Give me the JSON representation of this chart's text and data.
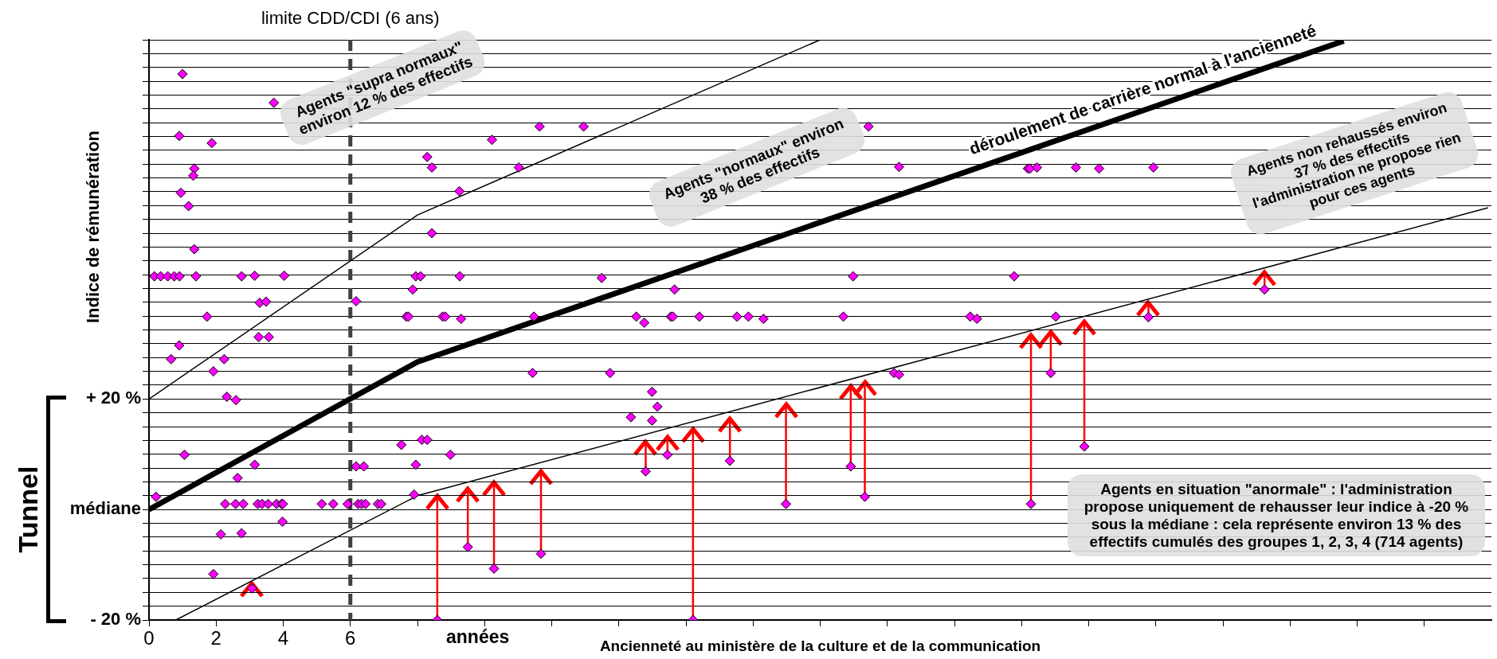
{
  "chart_data": {
    "type": "scatter",
    "xlabel": "Ancienneté au ministère de la culture et de la communication",
    "ylabel": "Indice de rémunération",
    "xlim": [
      0,
      40
    ],
    "ylim": [
      -20,
      85
    ],
    "xticks": [
      0,
      2,
      4,
      6,
      {
        "value": 8,
        "label": null
      },
      {
        "value": 10,
        "label": null
      },
      {
        "value": 12,
        "label": null
      },
      {
        "value": 14,
        "label": null
      },
      {
        "value": 16,
        "label": null
      },
      {
        "value": 18,
        "label": null
      },
      {
        "value": 20,
        "label": null
      },
      {
        "value": 22,
        "label": null
      },
      {
        "value": 24,
        "label": null
      },
      {
        "value": 26,
        "label": null
      },
      {
        "value": 28,
        "label": null
      },
      {
        "value": 30,
        "label": null
      },
      {
        "value": 32,
        "label": null
      },
      {
        "value": 34,
        "label": null
      },
      {
        "value": 36,
        "label": null
      },
      {
        "value": 38,
        "label": null
      }
    ],
    "yticks": [
      {
        "value": -20,
        "label": "- 20 %"
      },
      {
        "value": -17.5,
        "label": null
      },
      {
        "value": -15,
        "label": null
      },
      {
        "value": -12.5,
        "label": null
      },
      {
        "value": -10,
        "label": null
      },
      {
        "value": -7.5,
        "label": null
      },
      {
        "value": -5,
        "label": null
      },
      {
        "value": -2.5,
        "label": null
      },
      {
        "value": 0,
        "label": "médiane"
      },
      {
        "value": 2.5,
        "label": null
      },
      {
        "value": 5,
        "label": null
      },
      {
        "value": 7.5,
        "label": null
      },
      {
        "value": 10,
        "label": null
      },
      {
        "value": 12.5,
        "label": null
      },
      {
        "value": 15,
        "label": null
      },
      {
        "value": 17.5,
        "label": null
      },
      {
        "value": 20,
        "label": "+ 20 %"
      },
      {
        "value": 22.5,
        "label": null
      },
      {
        "value": 25,
        "label": null
      },
      {
        "value": 27.5,
        "label": null
      },
      {
        "value": 30,
        "label": null
      },
      {
        "value": 32.5,
        "label": null
      },
      {
        "value": 35,
        "label": null
      },
      {
        "value": 37.5,
        "label": null
      },
      {
        "value": 40,
        "label": null
      },
      {
        "value": 42.5,
        "label": null
      },
      {
        "value": 45,
        "label": null
      },
      {
        "value": 47.5,
        "label": null
      },
      {
        "value": 50,
        "label": null
      },
      {
        "value": 52.5,
        "label": null
      },
      {
        "value": 55,
        "label": null
      },
      {
        "value": 57.5,
        "label": null
      },
      {
        "value": 60,
        "label": null
      },
      {
        "value": 62.5,
        "label": null
      },
      {
        "value": 65,
        "label": null
      },
      {
        "value": 67.5,
        "label": null
      },
      {
        "value": 70,
        "label": null
      },
      {
        "value": 72.5,
        "label": null
      },
      {
        "value": 75,
        "label": null
      },
      {
        "value": 77.5,
        "label": null
      },
      {
        "value": 80,
        "label": null
      },
      {
        "value": 82.5,
        "label": null
      },
      {
        "value": 85,
        "label": null
      }
    ],
    "grid": "y",
    "marker": "diamond",
    "ref_lines": [
      {
        "axis": "x",
        "value": 6,
        "label": "limite CDD/CDI (6 ans)",
        "color": "#404040",
        "line_style": "dashed"
      }
    ],
    "annotations": [
      "années",
      "Agents \"supra normaux\" environ 12 % des effectifs",
      "Agents \"normaux\" environ 38 % des effectifs",
      "Agents non rehaussés environ 37 % des effectifs l'administration ne propose rien pour ces agents",
      "Agents en situation \"anormale\" : l'administration propose uniquement de rehausser leur indice à -20 % sous la médiane : cela représente environ 13 % des effectifs cumulés des groupes 1, 2, 3, 4  (714 agents)",
      "Tunnel"
    ],
    "series": [
      {
        "type": "scatter",
        "color": "#ff00ff",
        "x": [
          1.0,
          3.72,
          0.9,
          1.87,
          1.35,
          1.32,
          0.95,
          1.18,
          1.35,
          0.16,
          0.35,
          0.56,
          0.75,
          0.91,
          1.4,
          2.76,
          3.15,
          4.03,
          6.17,
          7.95,
          8.09,
          7.86,
          8.43,
          8.29,
          9.25,
          8.43,
          9.26,
          1.73,
          7.67,
          7.73,
          8.75,
          8.83,
          9.3,
          3.3,
          3.49,
          0.9,
          0.66,
          2.24,
          1.92,
          3.27,
          3.57,
          2.32,
          2.59,
          1.06,
          3.15,
          2.64,
          0.21,
          7.52,
          8.13,
          8.29,
          8.98,
          7.95,
          6.17,
          6.4,
          7.9,
          2.27,
          2.58,
          2.81,
          3.24,
          3.37,
          3.55,
          3.8,
          3.95,
          3.99,
          5.15,
          5.49,
          5.92,
          6.23,
          6.33,
          6.45,
          6.82,
          6.92,
          3.98,
          2.14,
          2.76,
          1.92,
          10.22,
          11.64,
          12.95,
          11.02,
          21.44,
          22.35,
          26.19,
          13.49,
          15.66,
          20.98,
          25.78,
          11.47,
          14.52,
          14.76,
          15.55,
          15.61,
          16.4,
          17.52,
          17.86,
          18.31,
          20.69,
          24.47,
          24.67,
          11.43,
          13.74,
          22.2,
          22.35,
          14.99,
          15.15,
          14.36,
          14.99,
          26.25,
          26.46,
          27.62,
          28.31,
          29.93,
          27.02
        ],
        "values": [
          78.8,
          73.6,
          67.6,
          66.3,
          61.7,
          60.4,
          57.3,
          54.9,
          47.1,
          42.2,
          42.2,
          42.2,
          42.2,
          42.2,
          42.2,
          42.2,
          42.3,
          42.3,
          37.7,
          42.2,
          42.2,
          39.8,
          61.9,
          63.8,
          57.6,
          50.0,
          42.2,
          34.9,
          34.9,
          34.9,
          34.9,
          34.9,
          34.5,
          37.4,
          37.6,
          29.7,
          27.2,
          27.2,
          25.0,
          31.2,
          31.2,
          20.4,
          19.8,
          9.9,
          8.1,
          5.7,
          2.3,
          11.7,
          12.6,
          12.6,
          9.9,
          8.1,
          7.8,
          7.8,
          2.7,
          1.0,
          1.0,
          1.0,
          1.0,
          1.0,
          1.0,
          1.0,
          1.0,
          1.0,
          1.0,
          1.0,
          1.0,
          1.0,
          1.0,
          1.0,
          1.0,
          1.0,
          -2.2,
          -4.5,
          -4.3,
          -11.7,
          66.9,
          69.3,
          69.3,
          61.9,
          69.3,
          62.0,
          61.7,
          41.9,
          39.8,
          42.2,
          42.2,
          34.9,
          34.9,
          33.8,
          34.9,
          34.9,
          34.9,
          34.9,
          34.9,
          34.5,
          34.9,
          34.9,
          34.5,
          24.7,
          24.7,
          24.7,
          24.4,
          21.3,
          18.6,
          16.7,
          16.1,
          61.7,
          61.9,
          61.9,
          61.7,
          61.9,
          34.9
        ]
      },
      {
        "type": "scatter",
        "color": "#ff00ff",
        "x": [
          3.07,
          8.59,
          9.5,
          10.28,
          11.68,
          14.8,
          15.45,
          16.21,
          17.31,
          18.98,
          20.91,
          21.33,
          26.28,
          26.87,
          27.87,
          29.78,
          33.24
        ],
        "values": [
          -14.3,
          -20,
          -6.8,
          -10.7,
          -8.0,
          6.9,
          9.9,
          -20,
          8.8,
          1.0,
          7.8,
          2.3,
          1.0,
          24.7,
          11.4,
          34.8,
          39.8
        ],
        "errors": [
          [
            -14.3,
            -13.4
          ],
          [
            -20,
            2.5
          ],
          [
            -6.8,
            3.7
          ],
          [
            -10.7,
            4.9
          ],
          [
            -8.0,
            6.9
          ],
          [
            6.9,
            12.3
          ],
          [
            9.9,
            13.1
          ],
          [
            -20,
            14.6
          ],
          [
            8.8,
            16.4
          ],
          [
            1.0,
            19.0
          ],
          [
            7.8,
            22.3
          ],
          [
            2.3,
            23.0
          ],
          [
            1.0,
            31.5
          ],
          [
            24.7,
            32.2
          ],
          [
            11.4,
            34.0
          ],
          [
            34.8,
            37.4
          ],
          [
            39.8,
            42.9
          ]
        ]
      },
      {
        "type": "line",
        "name": "déroulement de carrière normal à l'ancienneté",
        "color": "#000000",
        "marker": "none",
        "x": [
          0,
          8,
          35.6
        ],
        "values": [
          0,
          26.7,
          84.8
        ]
      },
      {
        "type": "line",
        "color": "#000000",
        "marker": "none",
        "x": [
          0,
          8,
          20
        ],
        "values": [
          20,
          53.3,
          85
        ]
      },
      {
        "type": "line",
        "color": "#000000",
        "marker": "none",
        "x": [
          0.8,
          8,
          39.9
        ],
        "values": [
          -20,
          2.5,
          54.6
        ]
      }
    ]
  }
}
